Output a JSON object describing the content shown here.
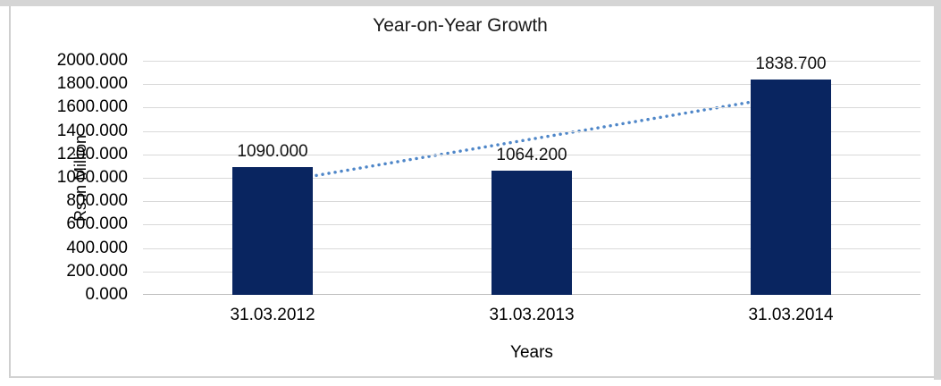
{
  "frame": {
    "border_color": "#d5d5d5",
    "background": "#ffffff"
  },
  "chart_data": {
    "type": "bar",
    "title": "Year-on-Year Growth",
    "xlabel": "Years",
    "ylabel": "Rs.in Million",
    "categories": [
      "31.03.2012",
      "31.03.2013",
      "31.03.2014"
    ],
    "values": [
      1090.0,
      1064.2,
      1838.7
    ],
    "data_labels": [
      "1090.000",
      "1064.200",
      "1838.700"
    ],
    "y_ticks": [
      "2000.000",
      "1800.000",
      "1600.000",
      "1400.000",
      "1200.000",
      "1000.000",
      "800.000",
      "600.000",
      "400.000",
      "200.000",
      "0.000"
    ],
    "ylim": [
      0,
      2000
    ],
    "grid": true,
    "legend": "none",
    "bar_color": "#092560",
    "gridline_color": "#d9d9d9",
    "trendline": {
      "type": "linear",
      "style": "dotted",
      "color": "#4e86c8",
      "start_value": 957,
      "end_value": 1705
    }
  }
}
